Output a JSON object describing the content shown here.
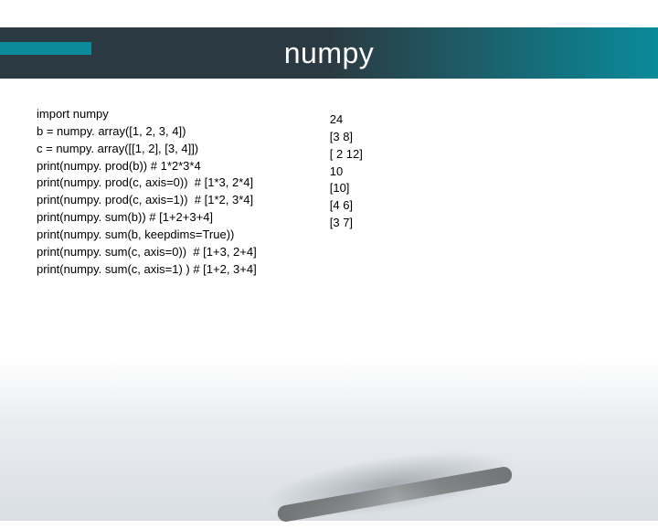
{
  "header": {
    "title": "numpy",
    "accent_color": "#0a8a9a",
    "bar_gradient_start": "#2b3a42",
    "bar_gradient_end": "#0a8a9a",
    "title_color": "#ffffff",
    "title_fontsize": 32
  },
  "code": {
    "lines": [
      "import numpy",
      "b = numpy. array([1, 2, 3, 4])",
      "c = numpy. array([[1, 2], [3, 4]])",
      "print(numpy. prod(b)) # 1*2*3*4",
      "print(numpy. prod(c, axis=0))  # [1*3, 2*4]",
      "print(numpy. prod(c, axis=1))  # [1*2, 3*4]",
      "print(numpy. sum(b)) # [1+2+3+4]",
      "print(numpy. sum(b, keepdims=True))",
      "print(numpy. sum(c, axis=0))  # [1+3, 2+4]",
      "print(numpy. sum(c, axis=1) ) # [1+2, 3+4]"
    ],
    "fontsize": 13,
    "text_color": "#000000"
  },
  "output": {
    "lines": [
      "24",
      "[3 8]",
      "[ 2 12]",
      "10",
      "[10]",
      "[4 6]",
      "[3 7]"
    ],
    "fontsize": 13,
    "text_color": "#000000"
  },
  "background": {
    "page_color": "#ffffff",
    "blur_tint": "#d8dde3"
  }
}
